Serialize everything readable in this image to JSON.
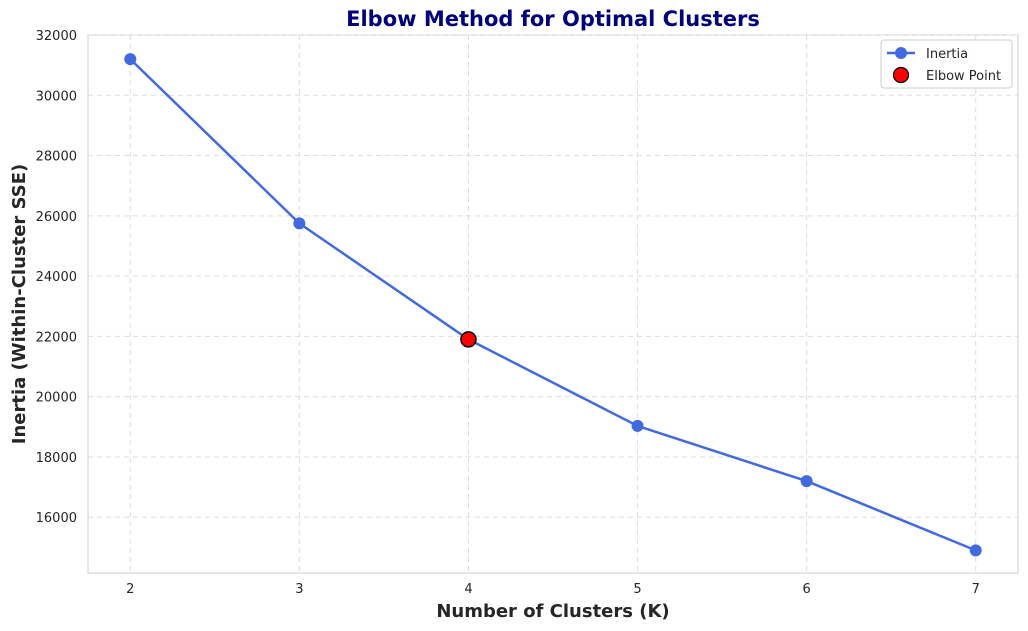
{
  "chart_data": {
    "type": "line",
    "title": "Elbow Method for Optimal Clusters",
    "xlabel": "Number of Clusters (K)",
    "ylabel": "Inertia (Within-Cluster SSE)",
    "x": [
      2,
      3,
      4,
      5,
      6,
      7
    ],
    "x_ticks": [
      2,
      3,
      4,
      5,
      6,
      7
    ],
    "y_ticks": [
      16000,
      18000,
      20000,
      22000,
      24000,
      26000,
      28000,
      30000,
      32000
    ],
    "xlim": [
      1.75,
      7.25
    ],
    "ylim": [
      14150,
      32000
    ],
    "grid": true,
    "legend_position": "top-right",
    "series": [
      {
        "name": "Inertia",
        "values": [
          31200,
          25750,
          21900,
          19030,
          17200,
          14900
        ],
        "color": "#4169E1",
        "marker": "circle"
      }
    ],
    "highlight": {
      "name": "Elbow Point",
      "x": 4,
      "y": 21900,
      "color": "#FF0000",
      "edge_color": "#000000"
    },
    "title_color": "#000080"
  }
}
